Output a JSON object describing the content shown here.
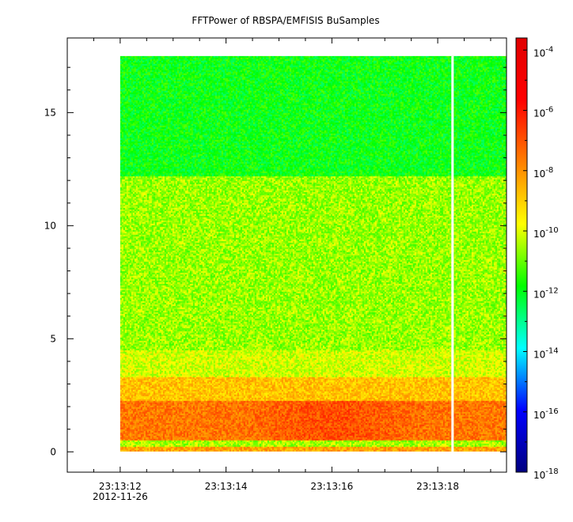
{
  "chart_data": {
    "type": "heatmap",
    "title": "FFTPower of RBSPA/EMFISIS  BuSamples",
    "xlabel": "",
    "ylabel": "",
    "x_ticks": [
      {
        "value": 0,
        "label": "23:13:12",
        "sublabel": "2012-11-26"
      },
      {
        "value": 2,
        "label": "23:13:14"
      },
      {
        "value": 4,
        "label": "23:13:16"
      },
      {
        "value": 6,
        "label": "23:13:18"
      }
    ],
    "x_minor_ticks": [
      -0.5,
      0.5,
      1,
      1.5,
      2.5,
      3,
      3.5,
      4.5,
      5,
      5.5,
      6.5,
      7
    ],
    "xlim": [
      -1.0,
      7.3
    ],
    "y_ticks": [
      {
        "value": 0,
        "label": "0"
      },
      {
        "value": 5,
        "label": "5"
      },
      {
        "value": 10,
        "label": "10"
      },
      {
        "value": 15,
        "label": "15"
      }
    ],
    "ylim": [
      -0.9,
      18.3
    ],
    "data_extent": {
      "x": [
        0.0,
        7.3
      ],
      "y": [
        0.0,
        17.5
      ]
    },
    "gap_x": 6.28,
    "spectral_bands": [
      {
        "y_from": 0.0,
        "y_to": 0.22,
        "log_power": -8.3
      },
      {
        "y_from": 0.22,
        "y_to": 0.55,
        "log_power": -10.5
      },
      {
        "y_from": 0.55,
        "y_to": 2.3,
        "log_power": -7.6
      },
      {
        "y_from": 2.3,
        "y_to": 3.3,
        "log_power": -8.8
      },
      {
        "y_from": 3.3,
        "y_to": 4.5,
        "log_power": -10.1
      },
      {
        "y_from": 4.5,
        "y_to": 12.2,
        "log_power": -10.6
      },
      {
        "y_from": 12.2,
        "y_to": 17.5,
        "log_power": -11.9
      }
    ],
    "colorbar": {
      "scale": "log",
      "range": [
        -18,
        -3.6
      ],
      "ticks": [
        {
          "exp": -4,
          "label": "10",
          "sup": "-4"
        },
        {
          "exp": -6,
          "label": "10",
          "sup": "-6"
        },
        {
          "exp": -8,
          "label": "10",
          "sup": "-8"
        },
        {
          "exp": -10,
          "label": "10",
          "sup": "-10"
        },
        {
          "exp": -12,
          "label": "10",
          "sup": "-12"
        },
        {
          "exp": -14,
          "label": "10",
          "sup": "-14"
        },
        {
          "exp": -16,
          "label": "10",
          "sup": "-16"
        },
        {
          "exp": -18,
          "label": "10",
          "sup": "-18"
        }
      ],
      "colors": [
        "#00007f",
        "#0000ff",
        "#00ffff",
        "#00ff00",
        "#ffff00",
        "#ff7f00",
        "#ff0000",
        "#e00000"
      ]
    },
    "grid": false,
    "legend": "none"
  }
}
